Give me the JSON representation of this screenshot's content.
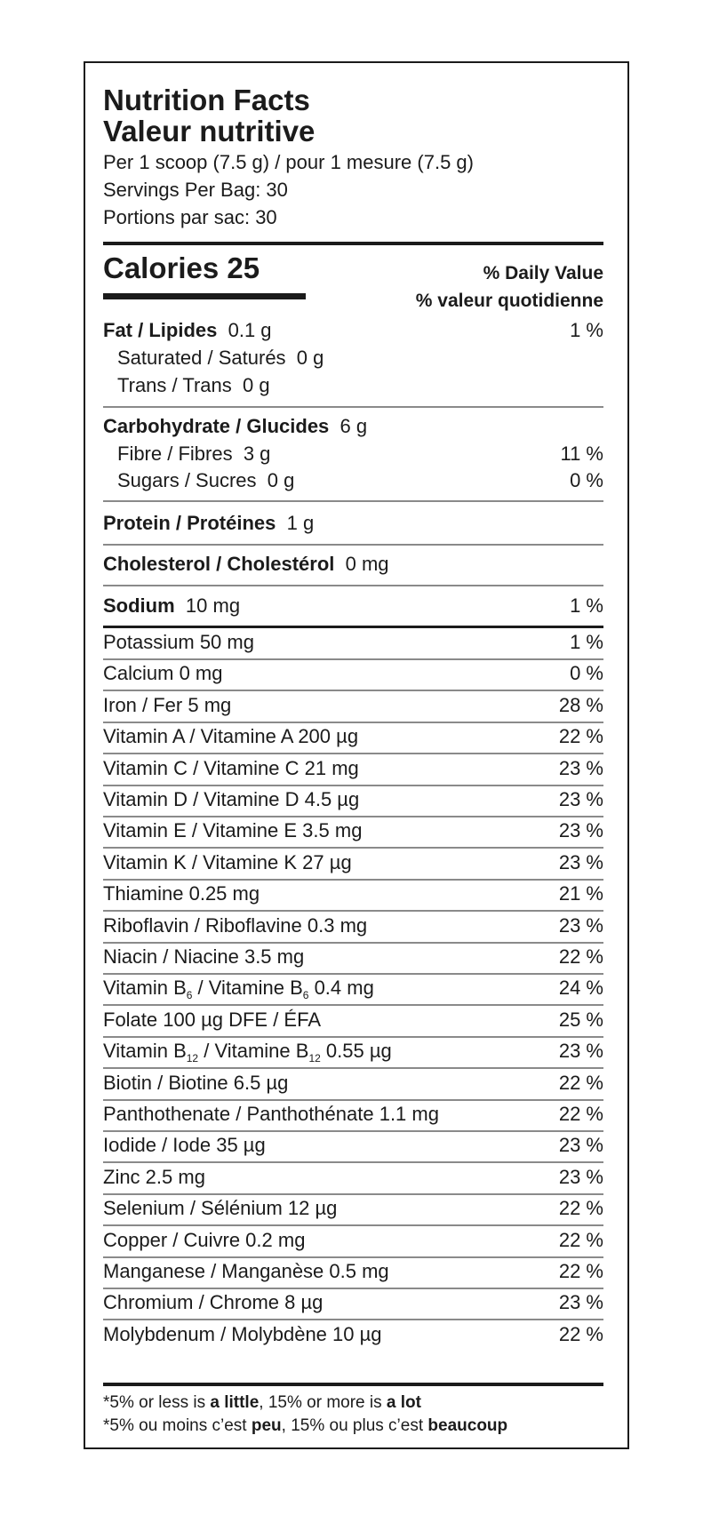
{
  "header": {
    "title_en": "Nutrition Facts",
    "title_fr": "Valeur nutritive",
    "serving": "Per 1 scoop (7.5 g) / pour 1 mesure (7.5 g)",
    "servings_en": "Servings Per Bag: 30",
    "servings_fr": "Portions par sac: 30"
  },
  "calories": {
    "label": "Calories 25",
    "dv_en": "% Daily Value",
    "dv_fr": "% valeur quotidienne"
  },
  "nutrients": {
    "fat": {
      "name": "Fat / Lipides",
      "amount": "0.1 g",
      "dv": "1 %"
    },
    "saturated": {
      "name": "Saturated / Saturés",
      "amount": "0 g"
    },
    "trans": {
      "name": "Trans / Trans",
      "amount": "0 g"
    },
    "carb": {
      "name": "Carbohydrate / Glucides",
      "amount": "6 g"
    },
    "fibre": {
      "name": "Fibre / Fibres",
      "amount": "3 g",
      "dv": "11 %"
    },
    "sugars": {
      "name": "Sugars / Sucres",
      "amount": "0 g",
      "dv": "0 %"
    },
    "protein": {
      "name": "Protein / Protéines",
      "amount": "1 g"
    },
    "cholesterol": {
      "name": "Cholesterol / Cholestérol",
      "amount": "0 mg"
    },
    "sodium": {
      "name": "Sodium",
      "amount": "10 mg",
      "dv": "1 %"
    }
  },
  "minerals": [
    {
      "text": "Potassium  50 mg",
      "dv": "1 %"
    },
    {
      "text": "Calcium  0 mg",
      "dv": "0 %"
    },
    {
      "text": "Iron / Fer  5 mg",
      "dv": "28 %"
    },
    {
      "text": "Vitamin A / Vitamine A  200 µg",
      "dv": "22 %"
    },
    {
      "text": "Vitamin C / Vitamine C  21 mg",
      "dv": "23 %"
    },
    {
      "text": "Vitamin D / Vitamine D  4.5 µg",
      "dv": "23 %"
    },
    {
      "text": "Vitamin E / Vitamine E  3.5 mg",
      "dv": "23 %"
    },
    {
      "text": "Vitamin K / Vitamine K  27 µg",
      "dv": "23 %"
    },
    {
      "text": "Thiamine  0.25 mg",
      "dv": "21 %"
    },
    {
      "text": "Riboflavin / Riboflavine  0.3 mg",
      "dv": "23 %"
    },
    {
      "text": "Niacin / Niacine  3.5 mg",
      "dv": "22 %"
    },
    {
      "a": "Vitamin B",
      "as": "6",
      "b": " / Vitamine B",
      "bs": "6",
      "c": "  0.4 mg",
      "dv": "24 %"
    },
    {
      "text": "Folate 100 µg DFE / ÉFA",
      "dv": "25 %"
    },
    {
      "a": "Vitamin B",
      "as": "12",
      "b": " / Vitamine B",
      "bs": "12",
      "c": "  0.55 µg",
      "dv": "23 %"
    },
    {
      "text": "Biotin / Biotine  6.5 µg",
      "dv": "22 %"
    },
    {
      "text": "Panthothenate / Panthothénate  1.1 mg",
      "dv": "22 %"
    },
    {
      "text": "Iodide / Iode  35 µg",
      "dv": "23 %"
    },
    {
      "text": "Zinc  2.5 mg",
      "dv": "23 %"
    },
    {
      "text": "Selenium / Sélénium  12 µg",
      "dv": "22 %"
    },
    {
      "text": "Copper / Cuivre  0.2 mg",
      "dv": "22 %"
    },
    {
      "text": "Manganese / Manganèse  0.5 mg",
      "dv": "22 %"
    },
    {
      "text": "Chromium / Chrome  8 µg",
      "dv": "23 %"
    },
    {
      "text": "Molybdenum / Molybdène  10 µg",
      "dv": "22 %"
    }
  ],
  "footnote": {
    "en": {
      "p1": "*5% or less is ",
      "b1": "a little",
      "p2": ", 15% or more is ",
      "b2": "a lot"
    },
    "fr": {
      "p1": "*5% ou moins c’est ",
      "b1": "peu",
      "p2": ", 15% ou plus c’est ",
      "b2": "beaucoup"
    }
  }
}
